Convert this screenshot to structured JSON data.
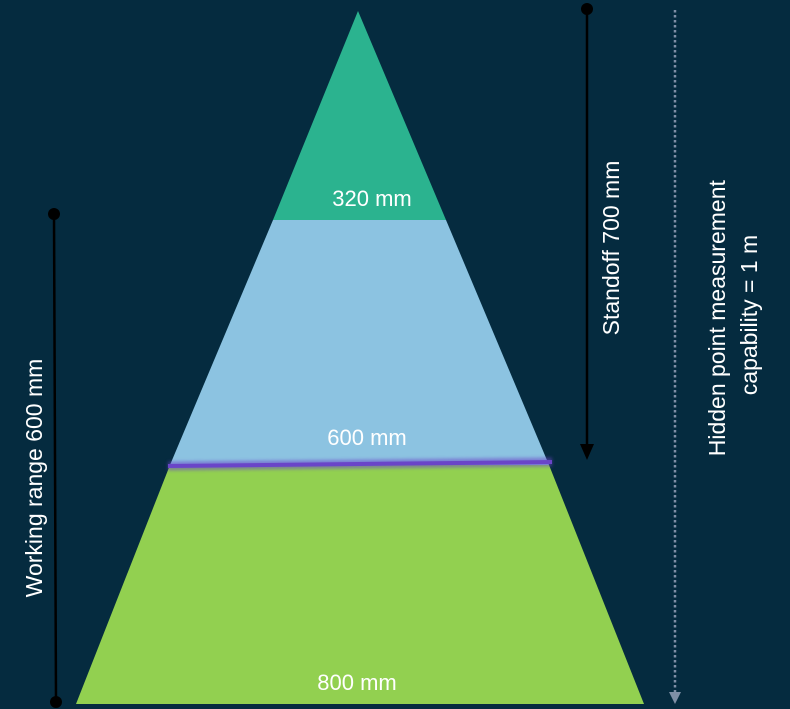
{
  "colors": {
    "background": "#052b3f",
    "top_section": "#2bb38f",
    "middle_section": "#8cc3e1",
    "bottom_section": "#92d050",
    "boundary_line": "#6a45c8",
    "arrow": "#000000",
    "dotted_line": "#7f8fa6"
  },
  "pyramid": {
    "top_width_label": "320 mm",
    "middle_width_label": "600 mm",
    "bottom_width_label": "800 mm"
  },
  "dimensions": {
    "working_range_label": "Working range 600 mm",
    "standoff_label": "Standoff 700 mm",
    "hidden_point_label_line1": "Hidden point measurement",
    "hidden_point_label_line2": "capability = 1 m"
  }
}
